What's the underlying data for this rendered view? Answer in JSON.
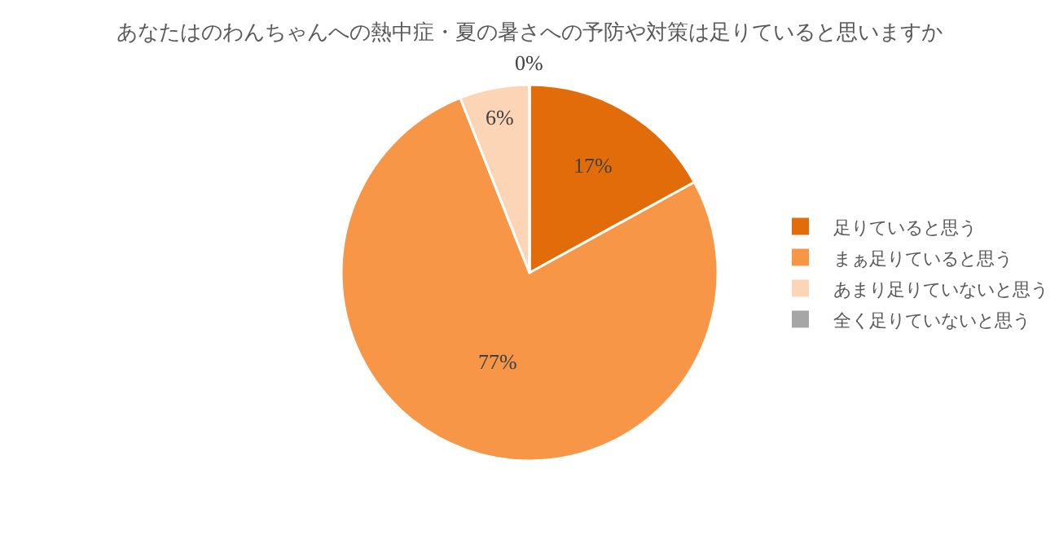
{
  "chart_data": {
    "type": "pie",
    "title": "あなたはのわんちゃんへの熱中症・夏の暑さへの予防や対策は足りていると思いますか",
    "categories": [
      "足りていると思う",
      "まぁ足りていると思う",
      "あまり足りていないと思う",
      "全く足りていないと思う"
    ],
    "values": [
      17,
      77,
      6,
      0
    ],
    "value_labels": [
      "17%",
      "77%",
      "6%",
      "0%"
    ],
    "colors": [
      "#e36c0a",
      "#f79646",
      "#fbd5b5",
      "#a6a6a6"
    ],
    "legend": "right"
  }
}
